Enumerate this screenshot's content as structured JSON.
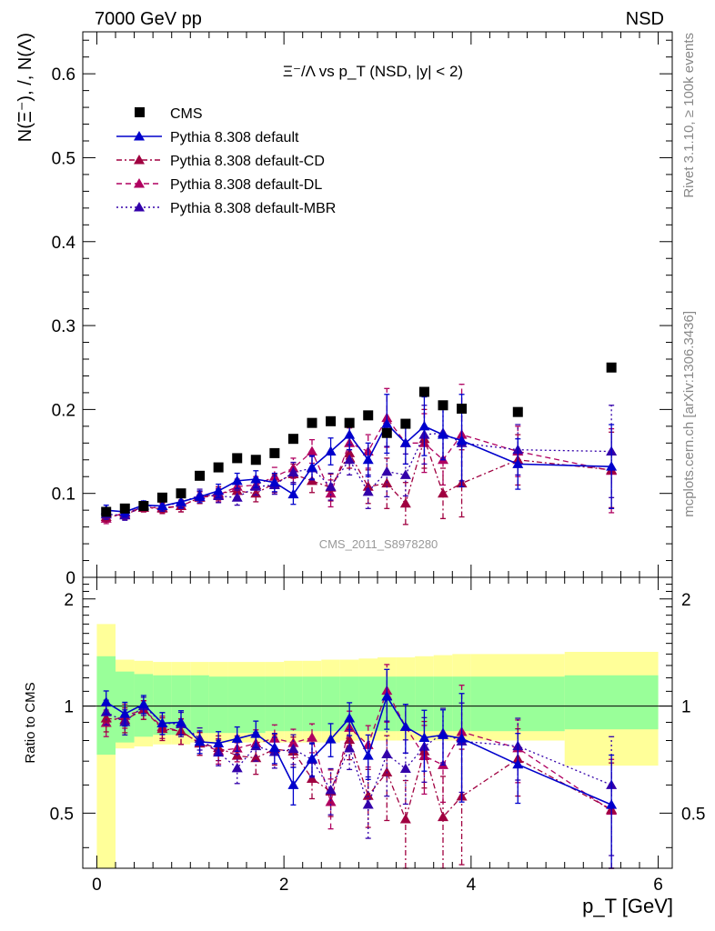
{
  "header": {
    "left": "7000 GeV pp",
    "right": "NSD"
  },
  "side_labels": {
    "rivet": "Rivet 3.1.10, ≥ 100k events",
    "mcplots": "mcplots.cern.ch [arXiv:1306.3436]"
  },
  "colors": {
    "data": "#000000",
    "default": "#0000cc",
    "cd": "#a00040",
    "dl": "#b00060",
    "mbr": "#3300aa",
    "band_outer": "#ffff99",
    "band_inner": "#99ff99"
  },
  "chart_data": {
    "type": "scatter",
    "title": "Ξ⁻/Λ  vs p_T (NSD, |y| < 2)",
    "ylabel": "N(Ξ⁻), /, N(Λ)",
    "xlabel": "p_T [GeV]",
    "ylim": [
      0,
      0.65
    ],
    "xlim": [
      -0.15,
      6.15
    ],
    "yticks": [
      "0",
      "0.1",
      "0.2",
      "0.3",
      "0.4",
      "0.5",
      "0.6"
    ],
    "xticks": [
      "0",
      "2",
      "4",
      "6"
    ],
    "watermark": "CMS_2011_S8978280",
    "x": [
      0.1,
      0.3,
      0.5,
      0.7,
      0.9,
      1.1,
      1.3,
      1.5,
      1.7,
      1.9,
      2.1,
      2.3,
      2.5,
      2.7,
      2.9,
      3.1,
      3.3,
      3.5,
      3.7,
      3.9,
      4.5,
      5.5
    ],
    "series": [
      {
        "name": "CMS",
        "key": "data",
        "marker": "square",
        "values": [
          0.078,
          0.082,
          0.085,
          0.095,
          0.1,
          0.121,
          0.131,
          0.142,
          0.14,
          0.148,
          0.165,
          0.184,
          0.186,
          0.184,
          0.193,
          0.172,
          0.183,
          0.221,
          0.205,
          0.201,
          0.197,
          0.25
        ]
      },
      {
        "name": "Pythia 8.308 default",
        "key": "default",
        "marker": "triangle",
        "dash": "",
        "values": [
          0.08,
          0.078,
          0.086,
          0.085,
          0.09,
          0.096,
          0.103,
          0.115,
          0.117,
          0.113,
          0.099,
          0.131,
          0.15,
          0.17,
          0.14,
          0.183,
          0.16,
          0.18,
          0.17,
          0.163,
          0.135,
          0.132
        ],
        "err": [
          0.006,
          0.006,
          0.005,
          0.006,
          0.007,
          0.007,
          0.008,
          0.009,
          0.01,
          0.011,
          0.012,
          0.014,
          0.016,
          0.018,
          0.02,
          0.035,
          0.025,
          0.035,
          0.03,
          0.055,
          0.03,
          0.05
        ]
      },
      {
        "name": "Pythia 8.308 default-CD",
        "key": "cd",
        "marker": "triangle",
        "dash": "6,3,2,3",
        "values": [
          0.072,
          0.075,
          0.083,
          0.082,
          0.085,
          0.095,
          0.1,
          0.103,
          0.1,
          0.112,
          0.123,
          0.115,
          0.107,
          0.148,
          0.108,
          0.112,
          0.088,
          0.165,
          0.1,
          0.112,
          0.14,
          0.128
        ],
        "err": [
          0.006,
          0.006,
          0.005,
          0.006,
          0.007,
          0.007,
          0.008,
          0.009,
          0.01,
          0.011,
          0.012,
          0.014,
          0.016,
          0.018,
          0.02,
          0.03,
          0.025,
          0.035,
          0.03,
          0.04,
          0.03,
          0.045
        ]
      },
      {
        "name": "Pythia 8.308 default-DL",
        "key": "dl",
        "marker": "triangle",
        "dash": "6,4",
        "values": [
          0.07,
          0.077,
          0.083,
          0.083,
          0.085,
          0.095,
          0.098,
          0.108,
          0.11,
          0.12,
          0.13,
          0.15,
          0.1,
          0.16,
          0.15,
          0.19,
          0.16,
          0.16,
          0.14,
          0.17,
          0.15,
          0.127
        ],
        "err": [
          0.006,
          0.006,
          0.005,
          0.006,
          0.007,
          0.007,
          0.008,
          0.009,
          0.01,
          0.011,
          0.012,
          0.014,
          0.016,
          0.018,
          0.02,
          0.035,
          0.025,
          0.035,
          0.03,
          0.06,
          0.03,
          0.05
        ]
      },
      {
        "name": "Pythia 8.308 default-MBR",
        "key": "mbr",
        "marker": "triangle",
        "dash": "2,3",
        "values": [
          0.075,
          0.074,
          0.085,
          0.085,
          0.089,
          0.098,
          0.097,
          0.095,
          0.108,
          0.11,
          0.125,
          0.13,
          0.108,
          0.14,
          0.102,
          0.126,
          0.122,
          0.17,
          0.172,
          0.16,
          0.152,
          0.15
        ],
        "err": [
          0.006,
          0.006,
          0.005,
          0.006,
          0.007,
          0.007,
          0.008,
          0.009,
          0.01,
          0.011,
          0.012,
          0.014,
          0.016,
          0.018,
          0.02,
          0.03,
          0.025,
          0.035,
          0.03,
          0.045,
          0.03,
          0.055
        ]
      }
    ],
    "ratio": {
      "ylabel": "Ratio to CMS",
      "ylim": [
        0.35,
        2.3
      ],
      "log": true,
      "yticks": [
        "0.5",
        "1",
        "2"
      ],
      "bins": [
        [
          0.0,
          0.2
        ],
        [
          0.2,
          0.4
        ],
        [
          0.4,
          0.6
        ],
        [
          0.6,
          0.8
        ],
        [
          0.8,
          1.0
        ],
        [
          1.0,
          1.2
        ],
        [
          1.2,
          1.4
        ],
        [
          1.4,
          1.6
        ],
        [
          1.6,
          1.8
        ],
        [
          1.8,
          2.0
        ],
        [
          2.0,
          2.2
        ],
        [
          2.2,
          2.4
        ],
        [
          2.4,
          2.6
        ],
        [
          2.6,
          2.8
        ],
        [
          2.8,
          3.0
        ],
        [
          3.0,
          3.2
        ],
        [
          3.2,
          3.4
        ],
        [
          3.4,
          3.6
        ],
        [
          3.6,
          3.8
        ],
        [
          3.8,
          4.0
        ],
        [
          4.0,
          5.0
        ],
        [
          5.0,
          6.0
        ]
      ],
      "band_outer": [
        [
          0.35,
          1.7
        ],
        [
          0.76,
          1.35
        ],
        [
          0.77,
          1.34
        ],
        [
          0.78,
          1.33
        ],
        [
          0.78,
          1.33
        ],
        [
          0.79,
          1.33
        ],
        [
          0.79,
          1.33
        ],
        [
          0.79,
          1.33
        ],
        [
          0.79,
          1.33
        ],
        [
          0.79,
          1.33
        ],
        [
          0.79,
          1.34
        ],
        [
          0.79,
          1.34
        ],
        [
          0.79,
          1.35
        ],
        [
          0.8,
          1.35
        ],
        [
          0.8,
          1.36
        ],
        [
          0.8,
          1.37
        ],
        [
          0.8,
          1.37
        ],
        [
          0.8,
          1.38
        ],
        [
          0.8,
          1.39
        ],
        [
          0.8,
          1.4
        ],
        [
          0.8,
          1.4
        ],
        [
          0.68,
          1.42
        ]
      ],
      "band_inner": [
        [
          0.73,
          1.38
        ],
        [
          0.79,
          1.25
        ],
        [
          0.82,
          1.23
        ],
        [
          0.83,
          1.22
        ],
        [
          0.83,
          1.22
        ],
        [
          0.84,
          1.22
        ],
        [
          0.84,
          1.21
        ],
        [
          0.84,
          1.21
        ],
        [
          0.84,
          1.21
        ],
        [
          0.85,
          1.21
        ],
        [
          0.85,
          1.21
        ],
        [
          0.85,
          1.21
        ],
        [
          0.85,
          1.21
        ],
        [
          0.85,
          1.21
        ],
        [
          0.85,
          1.21
        ],
        [
          0.85,
          1.21
        ],
        [
          0.85,
          1.21
        ],
        [
          0.85,
          1.21
        ],
        [
          0.85,
          1.21
        ],
        [
          0.85,
          1.21
        ],
        [
          0.85,
          1.21
        ],
        [
          0.86,
          1.22
        ]
      ]
    }
  }
}
